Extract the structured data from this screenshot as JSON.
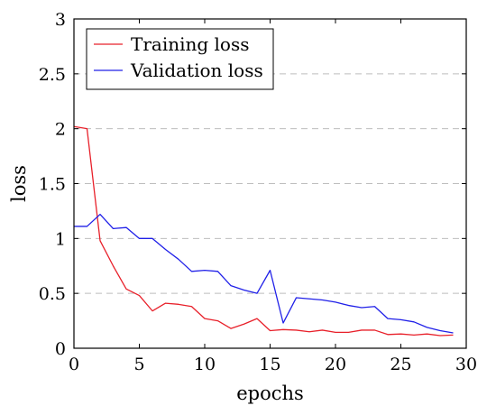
{
  "chart_data": {
    "type": "line",
    "xlabel": "epochs",
    "ylabel": "loss",
    "xlim": [
      0,
      30
    ],
    "ylim": [
      0,
      3
    ],
    "xticks": [
      0,
      5,
      10,
      15,
      20,
      25,
      30
    ],
    "yticks": [
      0,
      0.5,
      1,
      1.5,
      2,
      2.5,
      3
    ],
    "ytick_labels": [
      "0",
      "0.5",
      "1",
      "1.5",
      "2",
      "2.5",
      "3"
    ],
    "grid": "horizontal dashed",
    "legend_position": "top-left",
    "series": [
      {
        "name": "Training loss",
        "color": "#e8202a",
        "x": [
          0,
          1,
          2,
          3,
          4,
          5,
          6,
          7,
          8,
          9,
          10,
          11,
          12,
          13,
          14,
          15,
          16,
          17,
          18,
          19,
          20,
          21,
          22,
          23,
          24,
          25,
          26,
          27,
          28,
          29
        ],
        "y": [
          2.02,
          2.0,
          0.98,
          0.75,
          0.54,
          0.48,
          0.34,
          0.41,
          0.4,
          0.38,
          0.27,
          0.25,
          0.18,
          0.22,
          0.27,
          0.16,
          0.17,
          0.165,
          0.15,
          0.165,
          0.145,
          0.145,
          0.165,
          0.165,
          0.125,
          0.13,
          0.12,
          0.13,
          0.115,
          0.12
        ]
      },
      {
        "name": "Validation loss",
        "color": "#2020e8",
        "x": [
          0,
          1,
          2,
          3,
          4,
          5,
          6,
          7,
          8,
          9,
          10,
          11,
          12,
          13,
          14,
          15,
          16,
          17,
          18,
          19,
          20,
          21,
          22,
          23,
          24,
          25,
          26,
          27,
          28,
          29
        ],
        "y": [
          1.11,
          1.11,
          1.22,
          1.09,
          1.1,
          1.0,
          1.0,
          0.9,
          0.81,
          0.7,
          0.71,
          0.7,
          0.57,
          0.53,
          0.5,
          0.71,
          0.23,
          0.46,
          0.45,
          0.44,
          0.42,
          0.39,
          0.37,
          0.38,
          0.27,
          0.26,
          0.24,
          0.19,
          0.16,
          0.14
        ]
      }
    ]
  }
}
